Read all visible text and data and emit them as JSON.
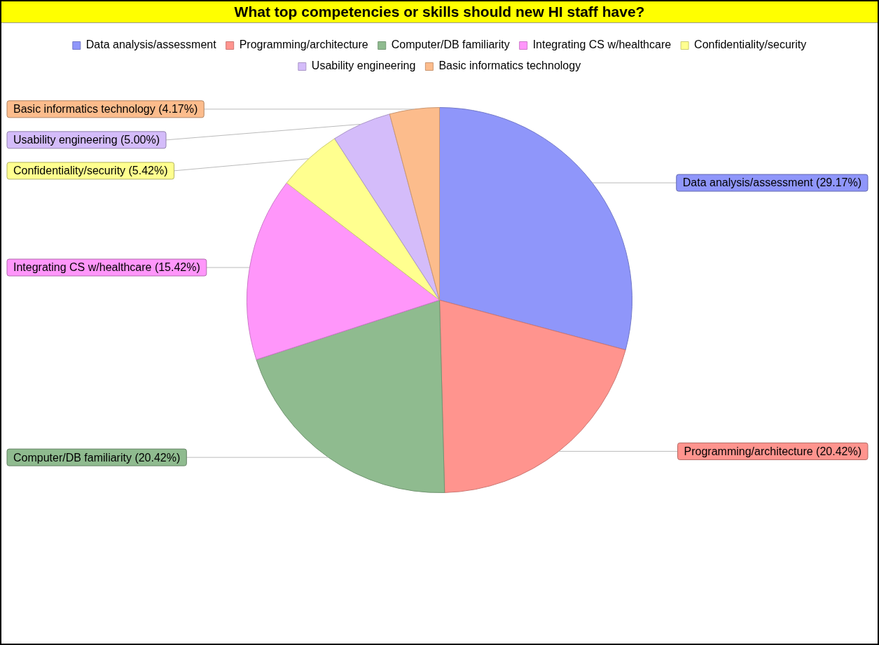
{
  "chart_data": {
    "type": "pie",
    "title": "What top competencies or skills should new HI staff have?",
    "categories": [
      "Data analysis/assessment",
      "Programming/architecture",
      "Computer/DB familiarity",
      "Integrating CS w/healthcare",
      "Confidentiality/security",
      "Usability engineering",
      "Basic informatics technology"
    ],
    "values": [
      29.17,
      20.42,
      20.42,
      15.42,
      5.42,
      5.0,
      4.17
    ],
    "value_labels": [
      "(29.17%)",
      "(20.42%)",
      "(20.42%)",
      "(15.42%)",
      "(5.42%)",
      "(5.00%)",
      "(4.17%)"
    ],
    "colors": [
      "#8f96fa",
      "#ff948e",
      "#8fbb8f",
      "#ff96fa",
      "#ffff8f",
      "#d4bcfa",
      "#fcbc8c"
    ],
    "legend": "top"
  }
}
